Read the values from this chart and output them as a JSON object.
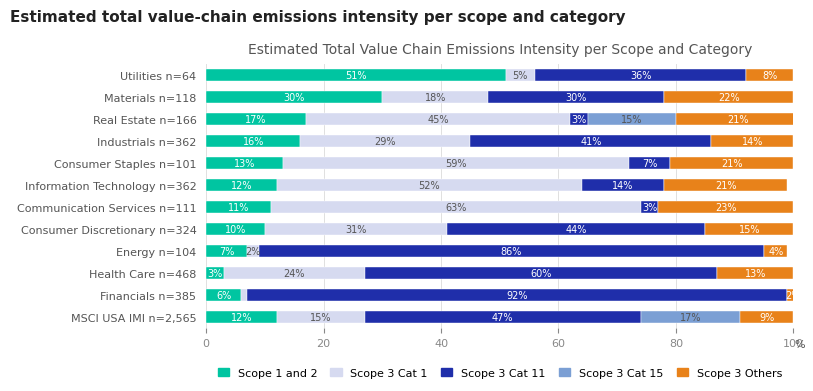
{
  "title_main": "Estimated total value-chain emissions intensity per scope and category",
  "title_chart": "Estimated Total Value Chain Emissions Intensity per Scope and Category",
  "xlabel": "%",
  "categories": [
    "Utilities n=64",
    "Materials n=118",
    "Real Estate n=166",
    "Industrials n=362",
    "Consumer Staples n=101",
    "Information Technology n=362",
    "Communication Services n=111",
    "Consumer Discretionary n=324",
    "Energy n=104",
    "Health Care n=468",
    "Financials n=385",
    "MSCI USA IMI n=2,565"
  ],
  "scope1and2": [
    51,
    30,
    17,
    16,
    13,
    12,
    11,
    10,
    7,
    3,
    6,
    12
  ],
  "scope3cat1": [
    5,
    18,
    45,
    29,
    59,
    52,
    63,
    31,
    2,
    24,
    1,
    15
  ],
  "scope3cat11": [
    36,
    30,
    3,
    41,
    7,
    14,
    3,
    44,
    86,
    60,
    92,
    47
  ],
  "scope3cat15": [
    0,
    0,
    15,
    0,
    0,
    0,
    0,
    0,
    0,
    0,
    0,
    17
  ],
  "scope3others": [
    8,
    22,
    21,
    14,
    21,
    21,
    23,
    15,
    4,
    13,
    2,
    9
  ],
  "labels_scope1and2": [
    "51%",
    "30%",
    "17%",
    "16%",
    "13%",
    "12%",
    "11%",
    "10%",
    "7%",
    "3%",
    "6%",
    "12%"
  ],
  "labels_scope3cat1": [
    "5%",
    "18%",
    "45%",
    "29%",
    "59%",
    "52%",
    "63%",
    "31%",
    "2%",
    "24%",
    "1%",
    "15%"
  ],
  "labels_scope3cat11": [
    "36%",
    "30%",
    "3%",
    "41%",
    "7%",
    "14%",
    "3%",
    "44%",
    "86%",
    "60%",
    "92%",
    "47%"
  ],
  "labels_scope3cat15": [
    "",
    "",
    "15%",
    "",
    "",
    "",
    "",
    "",
    "",
    "",
    "",
    "17%"
  ],
  "labels_scope3others": [
    "8%",
    "22%",
    "21%",
    "14%",
    "21%",
    "21%",
    "23%",
    "15%",
    "4%",
    "13%",
    "2%",
    "9%"
  ],
  "color_scope1and2": "#00C5A1",
  "color_scope3cat1": "#D6DAF0",
  "color_scope3cat11": "#1F2EAA",
  "color_scope3cat15": "#7B9FD4",
  "color_scope3others": "#E8821A",
  "legend_labels": [
    "Scope 1 and 2",
    "Scope 3 Cat 1",
    "Scope 3 Cat 11",
    "Scope 3 Cat 15",
    "Scope 3 Others"
  ],
  "bar_height": 0.55,
  "xlim": [
    0,
    100
  ],
  "title_main_fontsize": 11,
  "title_chart_fontsize": 10,
  "tick_label_fontsize": 8,
  "bar_label_fontsize": 7,
  "legend_fontsize": 8,
  "background_color": "#ffffff",
  "grid_color": "#e0e0e0"
}
